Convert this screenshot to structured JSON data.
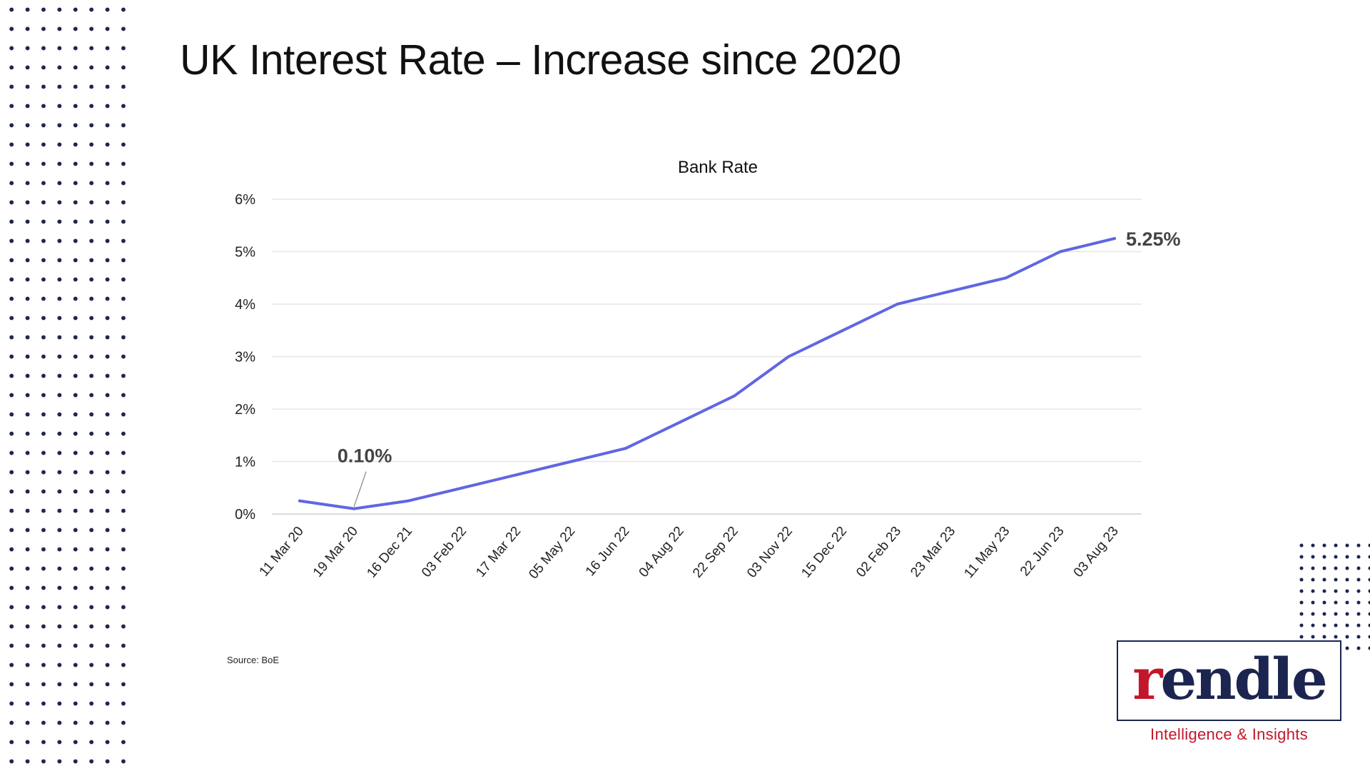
{
  "slide": {
    "title": "UK Interest Rate – Increase since 2020",
    "source": "Source: BoE"
  },
  "logo": {
    "word_first": "r",
    "word_rest": "endle",
    "tagline": "Intelligence & Insights",
    "brand_navy": "#1b2550",
    "brand_red": "#c4162a"
  },
  "chart_data": {
    "type": "line",
    "title": "Bank Rate",
    "xlabel": "",
    "ylabel": "",
    "categories": [
      "11 Mar 20",
      "19 Mar 20",
      "16 Dec 21",
      "03 Feb 22",
      "17 Mar 22",
      "05 May 22",
      "16 Jun 22",
      "04 Aug 22",
      "22 Sep 22",
      "03 Nov 22",
      "15 Dec 22",
      "02 Feb 23",
      "23 Mar 23",
      "11 May 23",
      "22 Jun 23",
      "03 Aug 23"
    ],
    "series": [
      {
        "name": "Bank Rate",
        "color": "#6066e2",
        "values": [
          0.25,
          0.1,
          0.25,
          0.5,
          0.75,
          1.0,
          1.25,
          1.75,
          2.25,
          3.0,
          3.5,
          4.0,
          4.25,
          4.5,
          5.0,
          5.25
        ]
      }
    ],
    "ylim": [
      0,
      6
    ],
    "yticks": [
      0,
      1,
      2,
      3,
      4,
      5,
      6
    ],
    "ytick_labels": [
      "0%",
      "1%",
      "2%",
      "3%",
      "4%",
      "5%",
      "6%"
    ],
    "grid": true,
    "annotations": [
      {
        "index": 1,
        "text": "0.10%"
      },
      {
        "index": 15,
        "text": "5.25%"
      }
    ]
  }
}
